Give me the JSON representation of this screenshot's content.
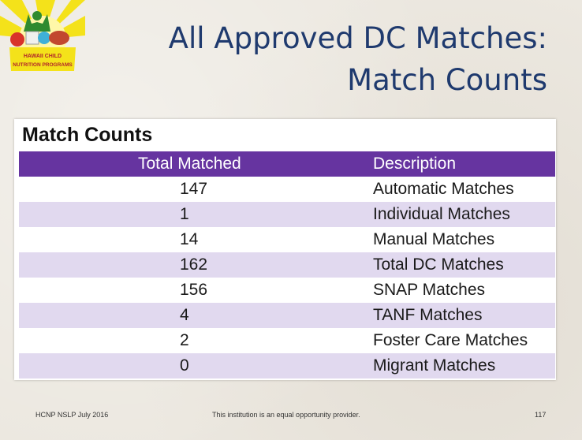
{
  "logo": {
    "line1": "HAWAII CHILD",
    "line2": "NUTRITION PROGRAMS"
  },
  "title": {
    "line1": "All Approved DC Matches:",
    "line2": "Match Counts"
  },
  "panel_title": "Match Counts",
  "table": {
    "headers": [
      "Total Matched",
      "Description"
    ],
    "rows": [
      {
        "total": "147",
        "description": "Automatic Matches"
      },
      {
        "total": "1",
        "description": "Individual Matches"
      },
      {
        "total": "14",
        "description": "Manual Matches"
      },
      {
        "total": "162",
        "description": "Total DC Matches"
      },
      {
        "total": "156",
        "description": "SNAP Matches"
      },
      {
        "total": "4",
        "description": "TANF Matches"
      },
      {
        "total": "2",
        "description": "Foster Care Matches"
      },
      {
        "total": "0",
        "description": "Migrant Matches"
      }
    ]
  },
  "footer": {
    "left": "HCNP NSLP July 2016",
    "middle": "This institution is an equal opportunity provider.",
    "page": "117"
  },
  "colors": {
    "header": "#6634a0",
    "alt_row": "#e1d9ef",
    "title": "#1f3a6e"
  }
}
